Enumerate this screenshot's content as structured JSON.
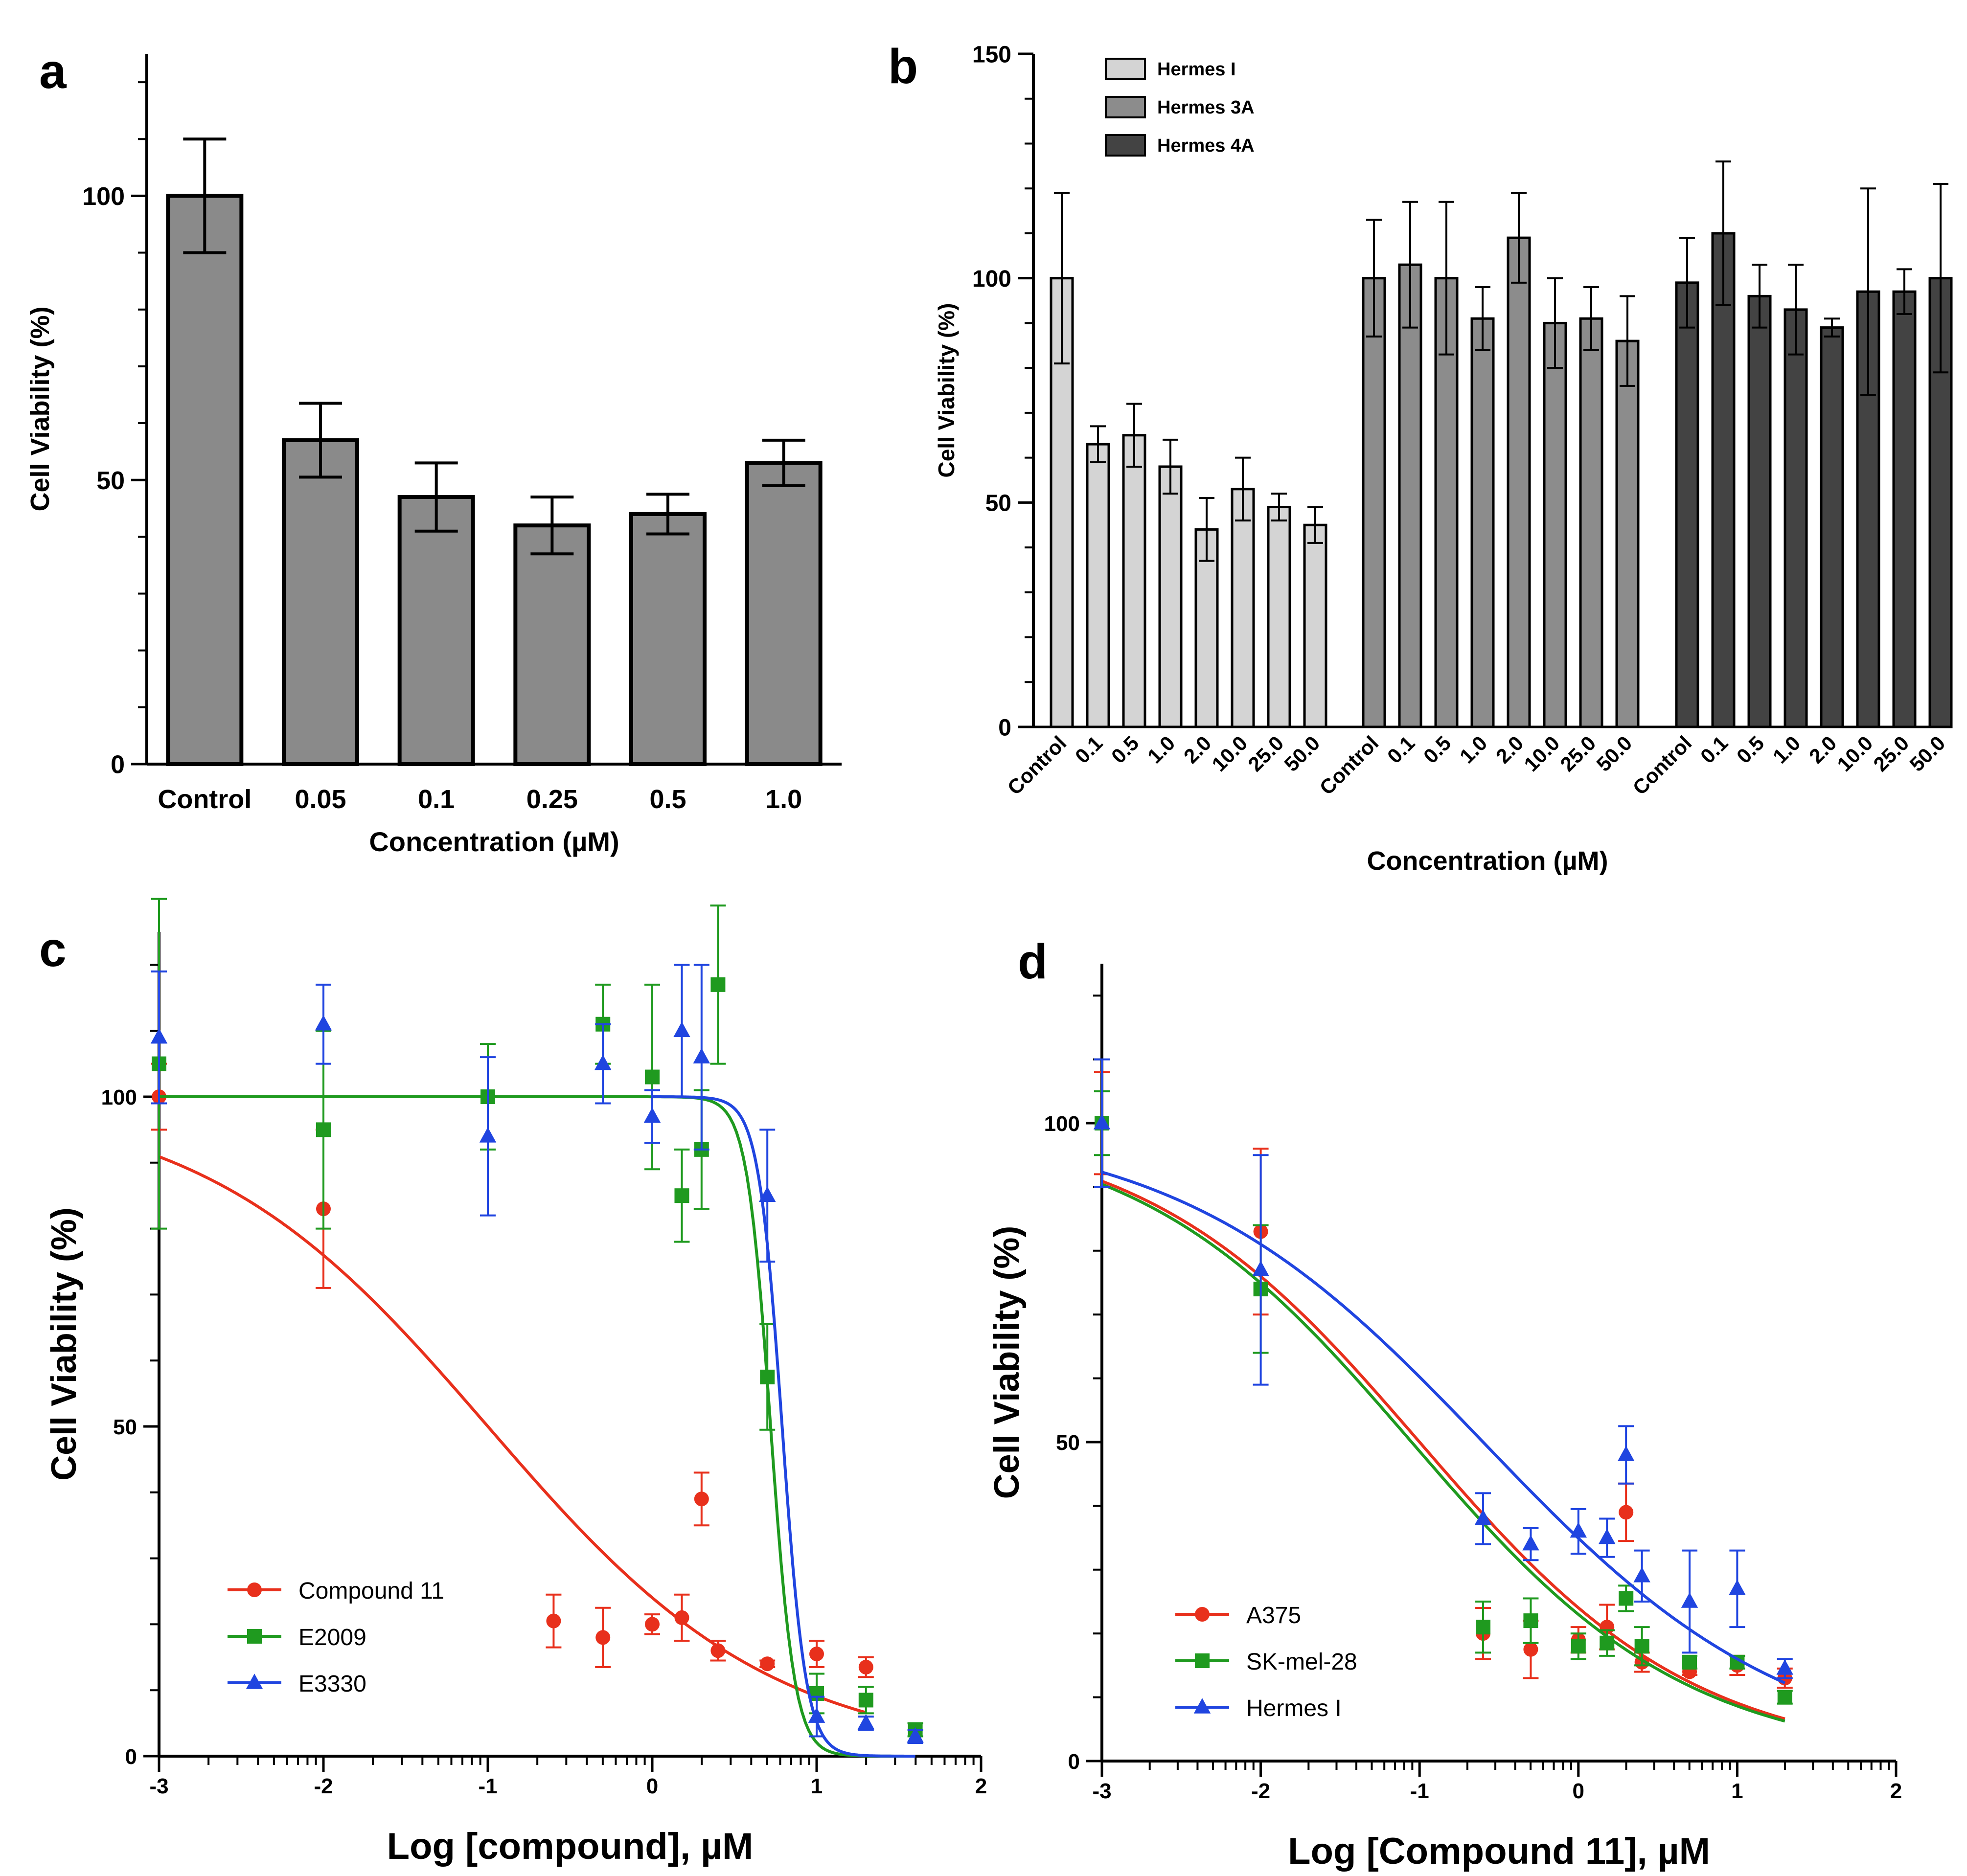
{
  "colors": {
    "bar_a": "#8a8a8a",
    "hermes_i": "#d4d4d4",
    "hermes_3a": "#8c8c8c",
    "hermes_4a": "#434343",
    "red": "#e8301c",
    "green": "#1f9a1f",
    "blue": "#2045e0"
  },
  "chart_data": [
    {
      "panel": "a",
      "type": "bar",
      "panel_label": "a",
      "xlabel": "Concentration (µM)",
      "ylabel": "Cell Viability (%)",
      "ylim": [
        0,
        125
      ],
      "yticks": [
        "0",
        "50",
        "100"
      ],
      "categories": [
        "Control",
        "0.05",
        "0.1",
        "0.25",
        "0.5",
        "1.0"
      ],
      "values": [
        100,
        57,
        47,
        42,
        44,
        53
      ],
      "errors": [
        10,
        6.5,
        6,
        5,
        3.5,
        4
      ]
    },
    {
      "panel": "b",
      "type": "bar",
      "panel_label": "b",
      "xlabel": "Concentration (µM)",
      "ylabel": "Cell Viability (%)",
      "ylim": [
        0,
        150
      ],
      "yticks": [
        "0",
        "50",
        "100",
        "150"
      ],
      "legend_position": "top-left",
      "categories": [
        "Control",
        "0.1",
        "0.5",
        "1.0",
        "2.0",
        "10.0",
        "25.0",
        "50.0"
      ],
      "series": [
        {
          "name": "Hermes I",
          "values": [
            100,
            63,
            65,
            58,
            44,
            53,
            49,
            45
          ],
          "errors": [
            19,
            4,
            7,
            6,
            7,
            7,
            3,
            4
          ]
        },
        {
          "name": "Hermes 3A",
          "values": [
            100,
            103,
            100,
            91,
            109,
            90,
            91,
            86
          ],
          "errors": [
            13,
            14,
            17,
            7,
            10,
            10,
            7,
            10
          ]
        },
        {
          "name": "Hermes 4A",
          "values": [
            99,
            110,
            96,
            93,
            89,
            97,
            97,
            100
          ],
          "errors": [
            10,
            16,
            7,
            10,
            2,
            23,
            5,
            21
          ]
        }
      ]
    },
    {
      "panel": "c",
      "type": "scatter",
      "panel_label": "c",
      "xlabel": "Log [compound], µM",
      "ylabel": "Cell Viability (%)",
      "xlim": [
        -3,
        2
      ],
      "ylim": [
        0,
        125
      ],
      "xticks": [
        "-3",
        "-2",
        "-1",
        "0",
        "1",
        "2"
      ],
      "yticks": [
        "0",
        "50",
        "100"
      ],
      "legend_position": "bottom-left",
      "series": [
        {
          "name": "Compound 11",
          "marker": "circle",
          "x": [
            -3,
            -2,
            -0.6,
            -0.3,
            0,
            0.18,
            0.3,
            0.4,
            0.7,
            1.0,
            1.3
          ],
          "y": [
            100,
            83,
            20.5,
            18,
            20,
            21,
            39,
            16,
            14,
            15.5,
            13.5
          ],
          "err": [
            5,
            12,
            4,
            4.5,
            1.5,
            3.5,
            4,
            1.5,
            0.5,
            2,
            1.5
          ],
          "fit": {
            "top": 100,
            "bottom": 0,
            "log_ic50": -1.0,
            "hill": 0.5,
            "x_range": [
              -3,
              1.3
            ]
          }
        },
        {
          "name": "E2009",
          "marker": "square",
          "x": [
            -3,
            -2,
            -1,
            -0.3,
            0,
            0.18,
            0.3,
            0.4,
            0.7,
            1.0,
            1.3,
            1.6
          ],
          "y": [
            105,
            95,
            100,
            111,
            103,
            85,
            92,
            117,
            57.5,
            9.5,
            8.5,
            4
          ],
          "err": [
            25,
            15,
            8,
            6,
            14,
            7,
            9,
            12,
            8,
            3,
            2,
            1
          ],
          "fit": {
            "top": 100,
            "bottom": 0,
            "log_ic50": 0.72,
            "hill": 6,
            "x_range": [
              -3,
              1.6
            ]
          }
        },
        {
          "name": "E3330",
          "marker": "triangle",
          "x": [
            -3,
            -2,
            -1,
            -0.3,
            0,
            0.18,
            0.3,
            0.7,
            1.0,
            1.3,
            1.6
          ],
          "y": [
            109,
            111,
            94,
            105,
            97,
            110,
            106,
            85,
            6,
            5,
            3
          ],
          "err": [
            10,
            6,
            12,
            6,
            4,
            10,
            14,
            10,
            3,
            1,
            1
          ],
          "fit": {
            "top": 100,
            "bottom": 0,
            "log_ic50": 0.79,
            "hill": 6,
            "x_range": [
              0,
              1.6
            ]
          }
        }
      ]
    },
    {
      "panel": "d",
      "type": "scatter",
      "panel_label": "d",
      "xlabel": "Log [Compound 11], µM",
      "ylabel": "Cell Viability (%)",
      "xlim": [
        -3,
        2
      ],
      "ylim": [
        0,
        125
      ],
      "xticks": [
        "-3",
        "-2",
        "-1",
        "0",
        "1",
        "2"
      ],
      "yticks": [
        "0",
        "50",
        "100"
      ],
      "legend_position": "bottom-left",
      "series": [
        {
          "name": "A375",
          "marker": "circle",
          "x": [
            -3,
            -2,
            -0.6,
            -0.3,
            0,
            0.18,
            0.3,
            0.4,
            0.7,
            1.0,
            1.3
          ],
          "y": [
            100,
            83,
            20,
            17.5,
            19,
            21,
            39,
            15.5,
            14,
            15,
            13
          ],
          "err": [
            8,
            13,
            4,
            4.5,
            2,
            3.5,
            4.5,
            1.5,
            0.5,
            1.5,
            1.5
          ],
          "fit": {
            "top": 100,
            "bottom": 0,
            "log_ic50": -1.0,
            "hill": 0.5,
            "x_range": [
              -3,
              1.3
            ]
          }
        },
        {
          "name": "SK-mel-28",
          "marker": "square",
          "x": [
            -3,
            -2,
            -0.6,
            -0.3,
            0,
            0.18,
            0.3,
            0.4,
            0.7,
            1.0,
            1.3
          ],
          "y": [
            100,
            74,
            21,
            22,
            18,
            18.5,
            25.5,
            18,
            15.5,
            15.5,
            10
          ],
          "err": [
            5,
            10,
            4,
            3.5,
            2,
            2,
            2,
            3,
            1,
            1,
            1
          ],
          "fit": {
            "top": 100,
            "bottom": 0,
            "log_ic50": -1.05,
            "hill": 0.5,
            "x_range": [
              -3,
              1.3
            ]
          }
        },
        {
          "name": "Hermes I",
          "marker": "triangle",
          "x": [
            -3,
            -2,
            -0.6,
            -0.3,
            0,
            0.18,
            0.3,
            0.4,
            0.7,
            1.0,
            1.3
          ],
          "y": [
            100,
            77,
            38,
            34,
            36,
            35,
            48,
            29,
            25,
            27,
            14.5
          ],
          "err": [
            10,
            18,
            4,
            2.5,
            3.5,
            3,
            4.5,
            4,
            8,
            6,
            1.5
          ],
          "fit": {
            "top": 100,
            "bottom": 0,
            "log_ic50": -0.6,
            "hill": 0.45,
            "x_range": [
              -3,
              1.3
            ]
          }
        }
      ]
    }
  ]
}
